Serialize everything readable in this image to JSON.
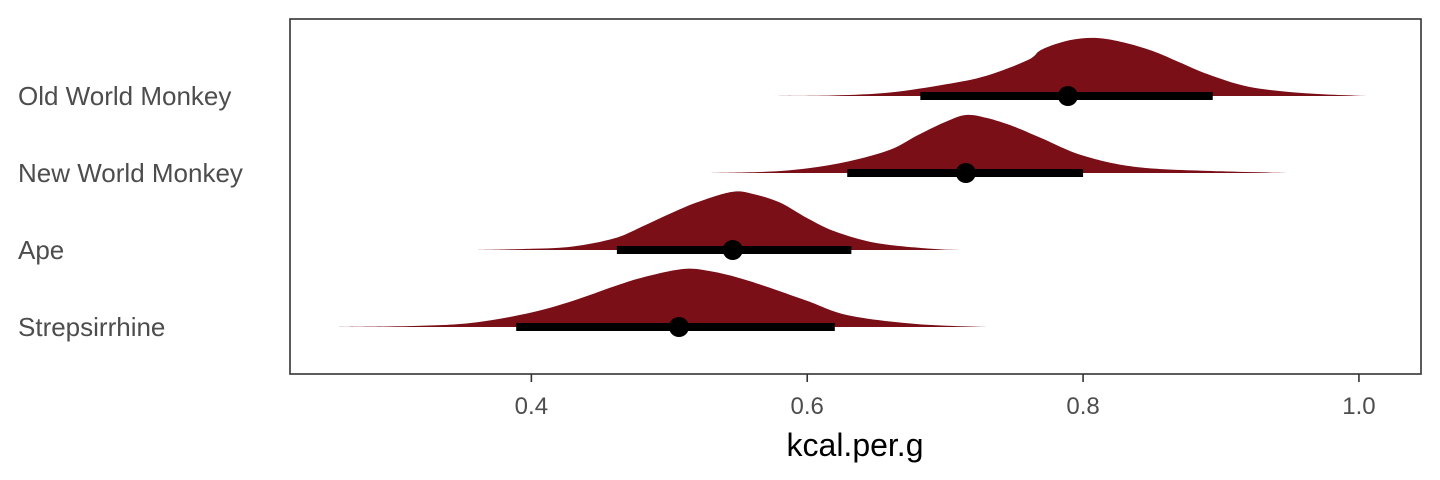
{
  "chart_data": {
    "type": "halfeye",
    "title": "",
    "xlabel": "kcal.per.g",
    "ylabel": "",
    "xlim": [
      0.225,
      1.045
    ],
    "xticks": [
      0.4,
      0.6,
      0.8,
      1.0
    ],
    "xtick_labels": [
      "0.4",
      "0.6",
      "0.8",
      "1.0"
    ],
    "grid": false,
    "legend": "none",
    "categories": [
      "Old World Monkey",
      "New World Monkey",
      "Ape",
      "Strepsirrhine"
    ],
    "series": [
      {
        "category": "Old World Monkey",
        "point": 0.789,
        "interval": [
          0.682,
          0.894
        ],
        "density_x": [
          0.575,
          0.62,
          0.66,
          0.7,
          0.73,
          0.76,
          0.77,
          0.79,
          0.81,
          0.83,
          0.85,
          0.87,
          0.89,
          0.92,
          0.96,
          1.005
        ],
        "density_y": [
          0.0,
          0.01,
          0.06,
          0.2,
          0.35,
          0.62,
          0.8,
          0.96,
          1.0,
          0.92,
          0.78,
          0.58,
          0.38,
          0.16,
          0.05,
          0.0
        ]
      },
      {
        "category": "New World Monkey",
        "point": 0.715,
        "interval": [
          0.629,
          0.8
        ],
        "density_x": [
          0.53,
          0.57,
          0.6,
          0.63,
          0.66,
          0.68,
          0.7,
          0.715,
          0.73,
          0.75,
          0.77,
          0.8,
          0.84,
          0.9,
          0.95
        ],
        "density_y": [
          0.0,
          0.02,
          0.08,
          0.2,
          0.4,
          0.65,
          0.88,
          1.0,
          0.95,
          0.8,
          0.6,
          0.3,
          0.1,
          0.03,
          0.0
        ]
      },
      {
        "category": "Ape",
        "point": 0.546,
        "interval": [
          0.462,
          0.632
        ],
        "density_x": [
          0.36,
          0.4,
          0.43,
          0.46,
          0.48,
          0.5,
          0.52,
          0.545,
          0.56,
          0.58,
          0.6,
          0.62,
          0.65,
          0.69,
          0.71
        ],
        "density_y": [
          0.0,
          0.02,
          0.06,
          0.2,
          0.4,
          0.62,
          0.82,
          1.0,
          0.97,
          0.82,
          0.55,
          0.32,
          0.12,
          0.02,
          0.0
        ]
      },
      {
        "category": "Strepsirrhine",
        "point": 0.507,
        "interval": [
          0.389,
          0.62
        ],
        "density_x": [
          0.26,
          0.32,
          0.36,
          0.4,
          0.43,
          0.46,
          0.48,
          0.51,
          0.53,
          0.55,
          0.57,
          0.6,
          0.63,
          0.68,
          0.73
        ],
        "density_y": [
          0.0,
          0.02,
          0.08,
          0.25,
          0.45,
          0.7,
          0.85,
          1.0,
          0.96,
          0.85,
          0.7,
          0.45,
          0.2,
          0.05,
          0.0
        ]
      }
    ],
    "colors": {
      "density": "#7b0f17",
      "interval": "#000000",
      "point": "#000000",
      "panel_border": "#333333",
      "tick_label": "#4d4d4d",
      "category_label": "#4d4d4d",
      "axis_title": "#000000"
    }
  }
}
